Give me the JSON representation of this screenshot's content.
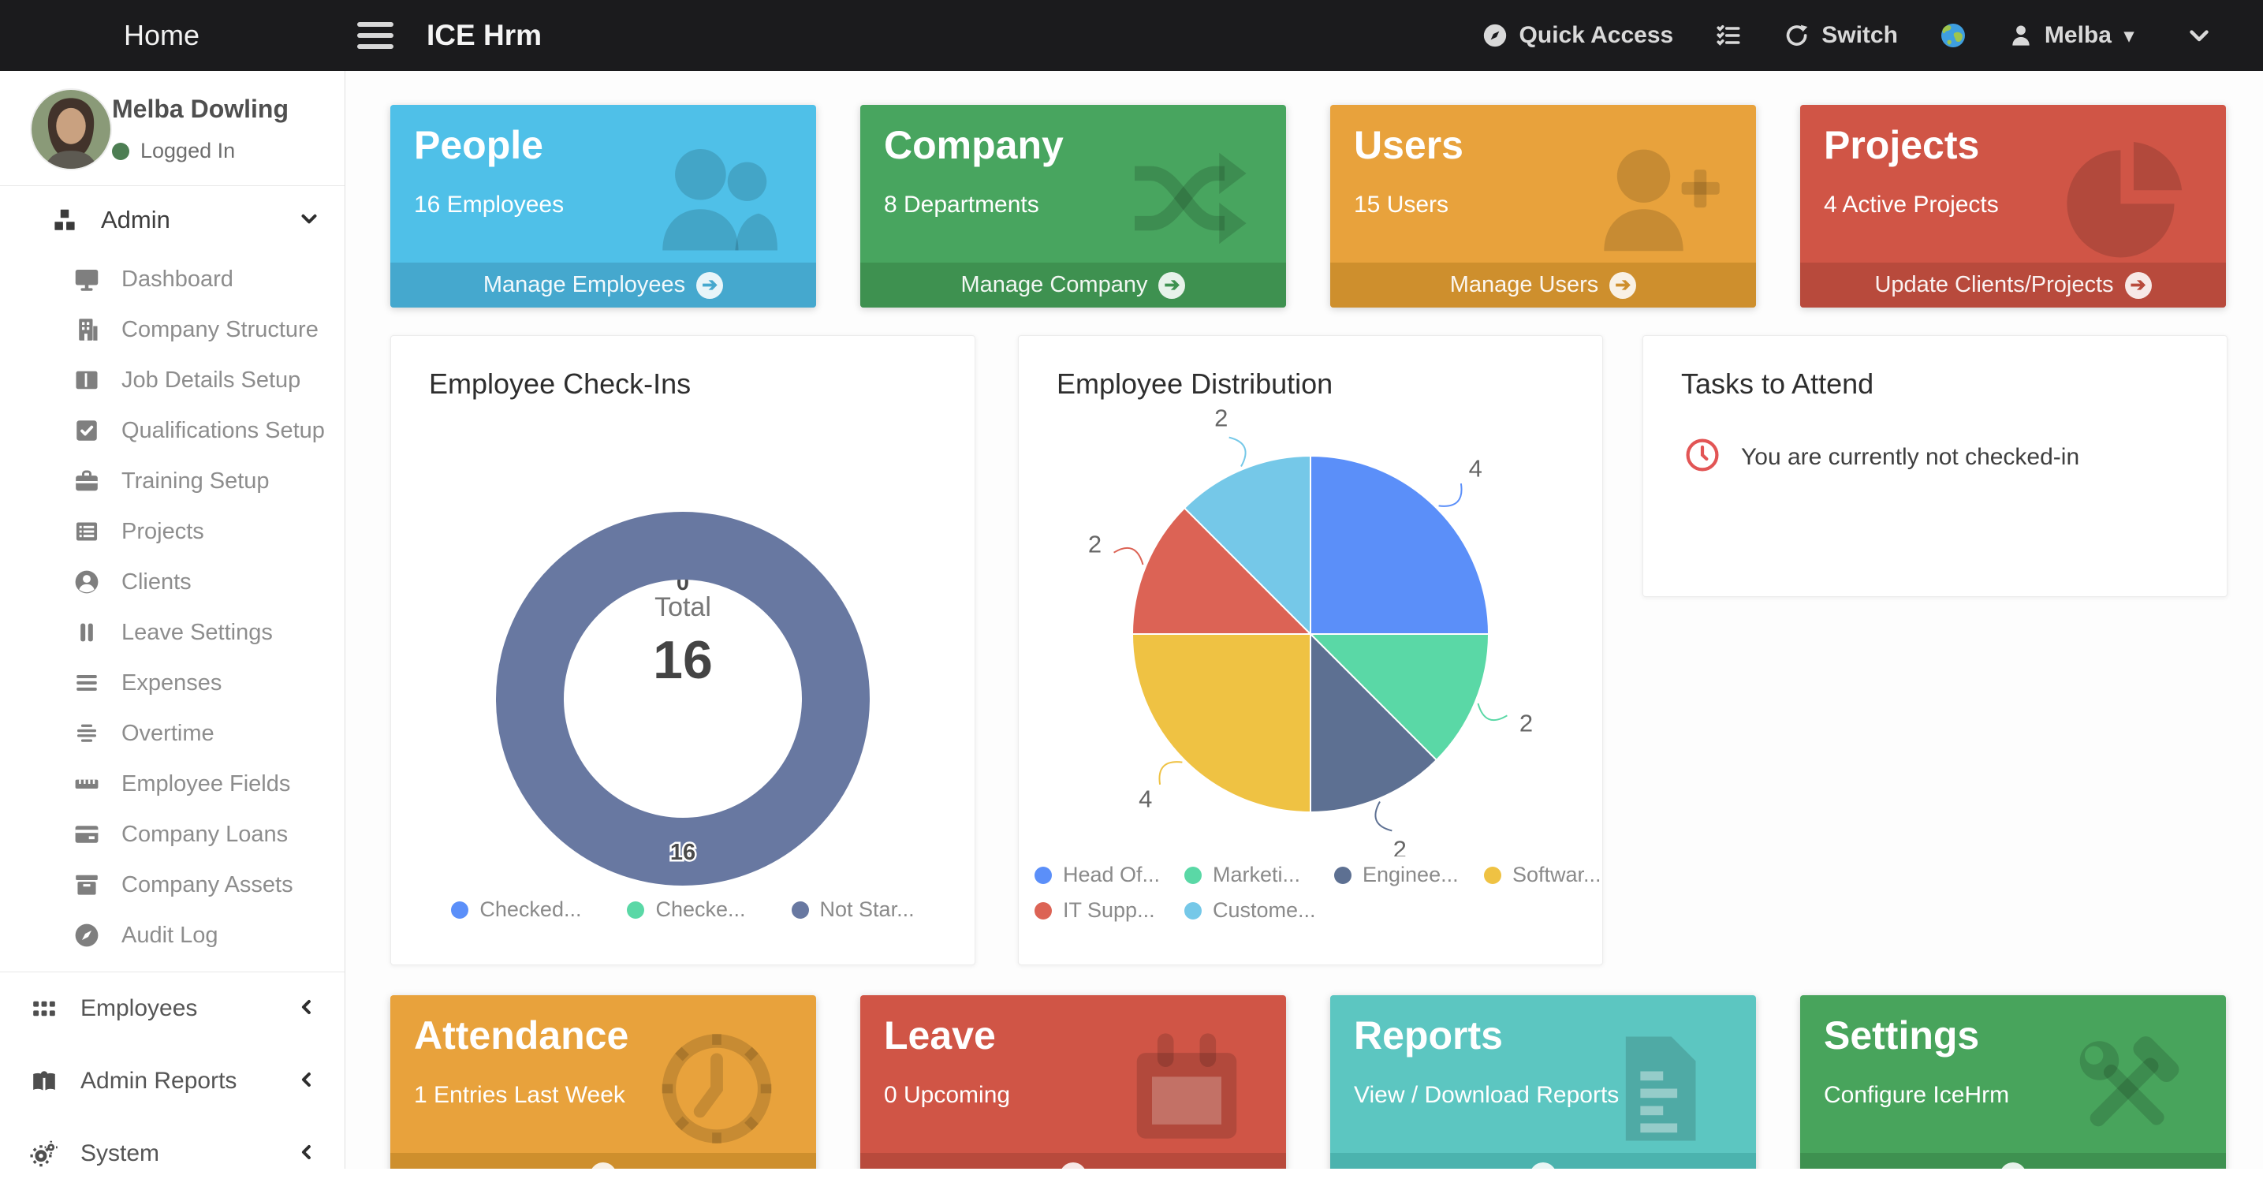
{
  "topbar": {
    "home": "Home",
    "brand": "ICE Hrm",
    "quick_access": "Quick Access",
    "switch_label": "Switch",
    "user": "Melba"
  },
  "sidebar": {
    "profile": {
      "name": "Melba Dowling",
      "status": "Logged In",
      "status_color": "#4d7e53"
    },
    "admin_section": {
      "label": "Admin",
      "icon": "cubes",
      "items": [
        {
          "label": "Dashboard",
          "icon": "monitor"
        },
        {
          "label": "Company Structure",
          "icon": "building"
        },
        {
          "label": "Job Details Setup",
          "icon": "columns"
        },
        {
          "label": "Qualifications Setup",
          "icon": "check-square"
        },
        {
          "label": "Training Setup",
          "icon": "briefcase"
        },
        {
          "label": "Projects",
          "icon": "list"
        },
        {
          "label": "Clients",
          "icon": "user-circle"
        },
        {
          "label": "Leave Settings",
          "icon": "pause"
        },
        {
          "label": "Expenses",
          "icon": "bars"
        },
        {
          "label": "Overtime",
          "icon": "align"
        },
        {
          "label": "Employee Fields",
          "icon": "ruler"
        },
        {
          "label": "Company Loans",
          "icon": "credit-card"
        },
        {
          "label": "Company Assets",
          "icon": "archive"
        },
        {
          "label": "Audit Log",
          "icon": "compass"
        }
      ]
    },
    "sections": [
      {
        "label": "Employees",
        "icon": "grid"
      },
      {
        "label": "Admin Reports",
        "icon": "book"
      },
      {
        "label": "System",
        "icon": "gears"
      }
    ]
  },
  "action_cards_top": [
    {
      "title": "People",
      "subtitle": "16 Employees",
      "footer": "Manage Employees",
      "color": "#4FC0E8",
      "footer_color": "#45A8CE",
      "icon": "people"
    },
    {
      "title": "Company",
      "subtitle": "8 Departments",
      "footer": "Manage Company",
      "color": "#48A55F",
      "footer_color": "#3E9150",
      "icon": "shuffle"
    },
    {
      "title": "Users",
      "subtitle": "15 Users",
      "footer": "Manage Users",
      "color": "#E8A23C",
      "footer_color": "#CE8F2D",
      "icon": "user-plus"
    },
    {
      "title": "Projects",
      "subtitle": "4 Active Projects",
      "footer": "Update Clients/Projects",
      "color": "#D05546",
      "footer_color": "#B84A3C",
      "icon": "pie-chart"
    }
  ],
  "action_cards_bottom": [
    {
      "title": "Attendance",
      "subtitle": "1 Entries Last Week",
      "color": "#E8A23C",
      "footer_color": "#CE8F2D",
      "icon": "clock"
    },
    {
      "title": "Leave",
      "subtitle": "0 Upcoming",
      "color": "#D05546",
      "footer_color": "#B84A3C",
      "icon": "calendar"
    },
    {
      "title": "Reports",
      "subtitle": "View / Download Reports",
      "color": "#5CC6C1",
      "footer_color": "#4BB3AE",
      "icon": "document"
    },
    {
      "title": "Settings",
      "subtitle": "Configure IceHrm",
      "color": "#48A45C",
      "footer_color": "#3E9150",
      "icon": "tools"
    }
  ],
  "tasks_card": {
    "title": "Tasks to Attend",
    "message": "You are currently not checked-in",
    "icon_color": "#E25555"
  },
  "chart_data": [
    {
      "type": "donut",
      "title": "Employee Check-Ins",
      "center_label": "Total",
      "total": 16,
      "legend_position": "bottom",
      "series": [
        {
          "name": "Checked...",
          "value": 0,
          "color": "#5B8FF9"
        },
        {
          "name": "Checke...",
          "value": 0,
          "color": "#5AD8A6"
        },
        {
          "name": "Not Star...",
          "value": 16,
          "color": "#6878A1"
        }
      ]
    },
    {
      "type": "pie",
      "title": "Employee Distribution",
      "legend_position": "bottom",
      "series": [
        {
          "name": "Head Of...",
          "value": 4,
          "color": "#5B8FF9"
        },
        {
          "name": "Marketi...",
          "value": 2,
          "color": "#5AD8A6"
        },
        {
          "name": "Enginee...",
          "value": 2,
          "color": "#5D7092"
        },
        {
          "name": "Softwar...",
          "value": 4,
          "color": "#EFC243"
        },
        {
          "name": "IT Supp...",
          "value": 2,
          "color": "#DC6355"
        },
        {
          "name": "Custome...",
          "value": 2,
          "color": "#75C8E8"
        }
      ]
    }
  ]
}
